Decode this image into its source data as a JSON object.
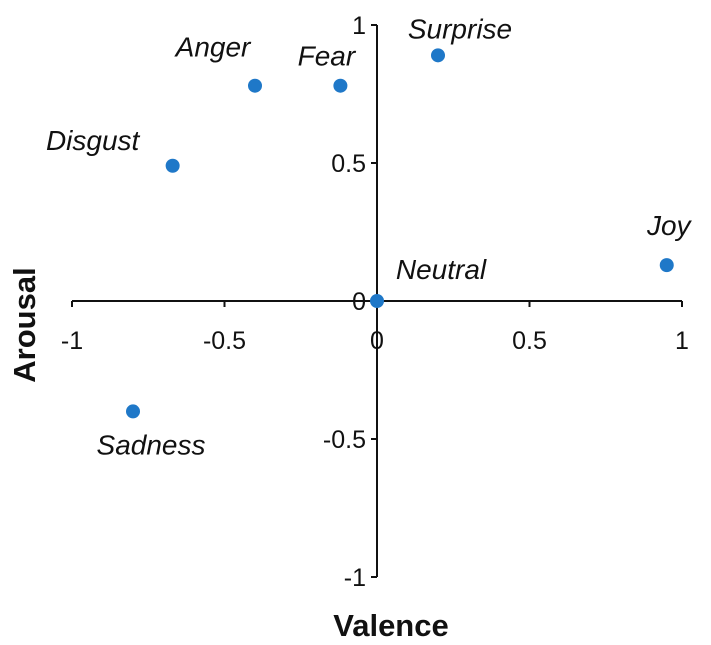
{
  "chart_data": {
    "type": "scatter",
    "title": "",
    "xlabel": "Valence",
    "ylabel": "Arousal",
    "xlim": [
      -1,
      1
    ],
    "ylim": [
      -1,
      1
    ],
    "grid": false,
    "marker_color": "#1f78c8",
    "x_ticks": [
      {
        "value": -1,
        "label": "-1"
      },
      {
        "value": -0.5,
        "label": "-0.5"
      },
      {
        "value": 0,
        "label": "0"
      },
      {
        "value": 0.5,
        "label": "0.5"
      },
      {
        "value": 1,
        "label": "1"
      }
    ],
    "y_ticks": [
      {
        "value": 1,
        "label": "1"
      },
      {
        "value": 0.5,
        "label": "0.5"
      },
      {
        "value": 0,
        "label": "0"
      },
      {
        "value": -0.5,
        "label": "-0.5"
      },
      {
        "value": -1,
        "label": "-1"
      }
    ],
    "points": [
      {
        "label": "Anger",
        "x": -0.4,
        "y": 0.78
      },
      {
        "label": "Fear",
        "x": -0.12,
        "y": 0.78
      },
      {
        "label": "Surprise",
        "x": 0.2,
        "y": 0.89
      },
      {
        "label": "Disgust",
        "x": -0.67,
        "y": 0.49
      },
      {
        "label": "Joy",
        "x": 0.95,
        "y": 0.13
      },
      {
        "label": "Neutral",
        "x": 0.0,
        "y": 0.0
      },
      {
        "label": "Sadness",
        "x": -0.8,
        "y": -0.4
      }
    ]
  }
}
